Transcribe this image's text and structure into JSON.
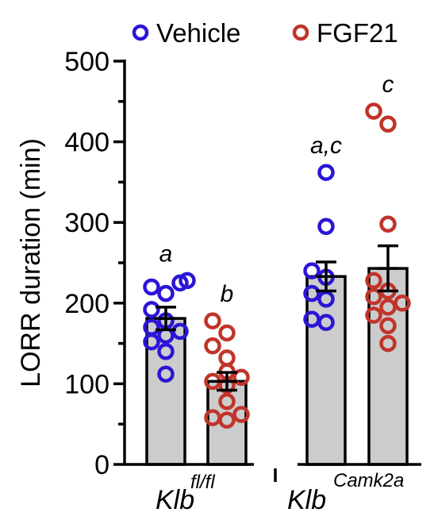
{
  "chart_data": {
    "type": "bar",
    "ylabel": "LORR duration (min)",
    "ylim": [
      0,
      500
    ],
    "yticks": [
      "0",
      "100",
      "200",
      "300",
      "400",
      "500"
    ],
    "legend_position": "top",
    "series": [
      {
        "name": "Vehicle",
        "color": "#2a16d6"
      },
      {
        "name": "FGF21",
        "color": "#c0342a"
      }
    ],
    "groups": [
      {
        "base": "Klb",
        "sup": "fl/fl"
      },
      {
        "base": "Klb",
        "sup": "Camk2a"
      }
    ],
    "bar_fill": "#cccccc",
    "bars": [
      {
        "group": 0,
        "series": 0,
        "mean": 181,
        "sem": 14,
        "label": "a",
        "points": [
          112,
          140,
          152,
          160,
          165,
          170,
          178,
          192,
          212,
          220,
          225,
          228
        ]
      },
      {
        "group": 0,
        "series": 1,
        "mean": 103,
        "sem": 11,
        "label": "b",
        "points": [
          55,
          58,
          62,
          78,
          98,
          103,
          108,
          115,
          132,
          147,
          163,
          178
        ]
      },
      {
        "group": 1,
        "series": 0,
        "mean": 233,
        "sem": 18,
        "label": "a,c",
        "points": [
          176,
          180,
          205,
          212,
          232,
          240,
          295,
          362
        ]
      },
      {
        "group": 1,
        "series": 1,
        "mean": 243,
        "sem": 28,
        "label": "c",
        "points": [
          150,
          172,
          185,
          195,
          200,
          208,
          215,
          228,
          298,
          422,
          438
        ]
      }
    ]
  }
}
